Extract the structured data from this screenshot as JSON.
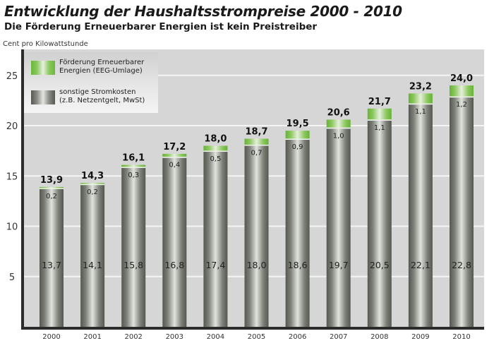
{
  "header": {
    "title": "Entwicklung der Haushaltsstrompreise 2000 - 2010",
    "subtitle": "Die Förderung Erneuerbarer Energien ist kein Preistreiber",
    "unit_label": "Cent pro Kilowattstunde"
  },
  "legend": {
    "items": [
      {
        "label": "Förderung Erneuerbarer\nEnergien (EEG-Umlage)",
        "icon": "green-gradient-swatch"
      },
      {
        "label": "sonstige Stromkosten\n(z.B. Netzentgelt, MwSt)",
        "icon": "grey-gradient-swatch"
      }
    ]
  },
  "colors": {
    "plot_background": "#d6d6d6",
    "gridline": "#f4f4f4",
    "axis": "#2b2b2b",
    "eeg_green": "#6ab83a",
    "other_grey": "#5f625b"
  },
  "chart_data": {
    "type": "bar",
    "stacked": true,
    "title": "Entwicklung der Haushaltsstrompreise 2000 - 2010",
    "subtitle": "Die Förderung Erneuerbarer Energien ist kein Preistreiber",
    "xlabel": "",
    "ylabel": "Cent pro Kilowattstunde",
    "ylim": [
      0,
      27.5
    ],
    "yticks": [
      5,
      10,
      15,
      20,
      25
    ],
    "grid": true,
    "legend_position": "top-left",
    "categories": [
      "2000",
      "2001",
      "2002",
      "2003",
      "2004",
      "2005",
      "2006",
      "2007",
      "2008",
      "2009",
      "2010"
    ],
    "series": [
      {
        "name": "sonstige Stromkosten (z.B. Netzentgelt, MwSt)",
        "values": [
          13.7,
          14.1,
          15.8,
          16.8,
          17.4,
          18.0,
          18.6,
          19.7,
          20.5,
          22.1,
          22.8
        ],
        "labels": [
          "13,7",
          "14,1",
          "15,8",
          "16,8",
          "17,4",
          "18,0",
          "18,6",
          "19,7",
          "20,5",
          "22,1",
          "22,8"
        ]
      },
      {
        "name": "Förderung Erneuerbarer Energien (EEG-Umlage)",
        "values": [
          0.2,
          0.2,
          0.3,
          0.4,
          0.5,
          0.7,
          0.9,
          1.0,
          1.1,
          1.1,
          1.2
        ],
        "labels": [
          "0,2",
          "0,2",
          "0,3",
          "0,4",
          "0,5",
          "0,7",
          "0,9",
          "1,0",
          "1,1",
          "1,1",
          "1,2"
        ]
      }
    ],
    "totals": [
      13.9,
      14.3,
      16.1,
      17.2,
      18.0,
      18.7,
      19.5,
      20.6,
      21.7,
      23.2,
      24.0
    ],
    "total_labels": [
      "13,9",
      "14,3",
      "16,1",
      "17,2",
      "18,0",
      "18,7",
      "19,5",
      "20,6",
      "21,7",
      "23,2",
      "24,0"
    ]
  }
}
